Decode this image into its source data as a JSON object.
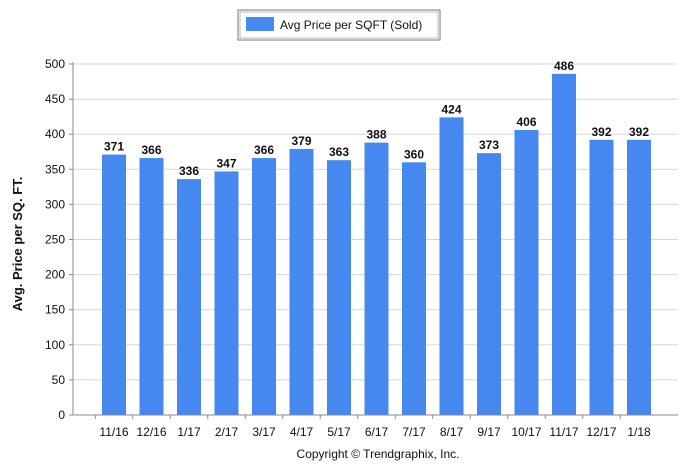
{
  "colors": {
    "bar": "#4488f0",
    "grid": "#d8d8d8",
    "axis": "#888888"
  },
  "copyright": "Copyright © Trendgraphix, Inc.",
  "chart_data": {
    "type": "bar",
    "categories": [
      "11/16",
      "12/16",
      "1/17",
      "2/17",
      "3/17",
      "4/17",
      "5/17",
      "6/17",
      "7/17",
      "8/17",
      "9/17",
      "10/17",
      "11/17",
      "12/17",
      "1/18"
    ],
    "series": [
      {
        "name": "Avg Price per SQFT (Sold)",
        "values": [
          371,
          366,
          336,
          347,
          366,
          379,
          363,
          388,
          360,
          424,
          373,
          406,
          486,
          392,
          392
        ]
      }
    ],
    "ylabel": "Avg. Price per SQ. FT.",
    "xlabel": "",
    "ylim": [
      0,
      500
    ],
    "yticks": [
      0,
      50,
      100,
      150,
      200,
      250,
      300,
      350,
      400,
      450,
      500
    ],
    "grid": true,
    "legend_position": "top-center"
  }
}
